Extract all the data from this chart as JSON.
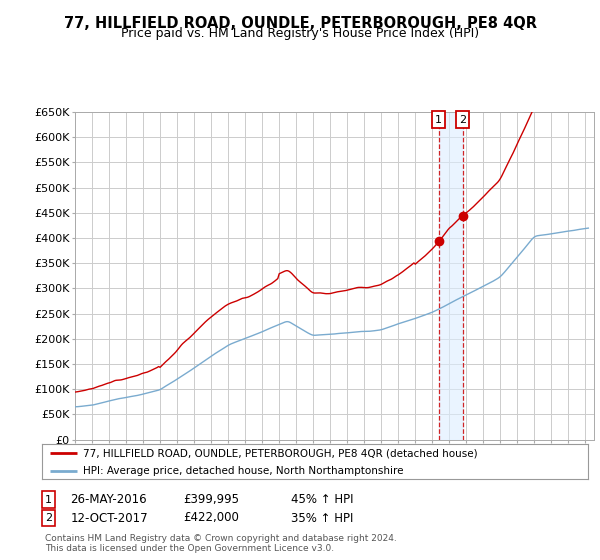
{
  "title": "77, HILLFIELD ROAD, OUNDLE, PETERBOROUGH, PE8 4QR",
  "subtitle": "Price paid vs. HM Land Registry's House Price Index (HPI)",
  "ylabel_ticks": [
    "£0",
    "£50K",
    "£100K",
    "£150K",
    "£200K",
    "£250K",
    "£300K",
    "£350K",
    "£400K",
    "£450K",
    "£500K",
    "£550K",
    "£600K",
    "£650K"
  ],
  "ytick_values": [
    0,
    50000,
    100000,
    150000,
    200000,
    250000,
    300000,
    350000,
    400000,
    450000,
    500000,
    550000,
    600000,
    650000
  ],
  "xlim_start": 1995.0,
  "xlim_end": 2025.5,
  "ylim_min": 0,
  "ylim_max": 650000,
  "line1_color": "#cc0000",
  "line2_color": "#7aabcf",
  "line1_label": "77, HILLFIELD ROAD, OUNDLE, PETERBOROUGH, PE8 4QR (detached house)",
  "line2_label": "HPI: Average price, detached house, North Northamptonshire",
  "transaction1_date": 2016.38,
  "transaction1_price": 399995,
  "transaction2_date": 2017.78,
  "transaction2_price": 422000,
  "background_color": "#ffffff",
  "grid_color": "#cccccc",
  "shade_color": "#ddeeff"
}
